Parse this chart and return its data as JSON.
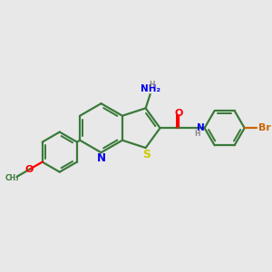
{
  "background_color": "#e8e8e8",
  "bond_color": "#3a7a3a",
  "bond_width": 1.6,
  "atom_colors": {
    "N": "#0000ee",
    "S": "#cccc00",
    "O": "#ff0000",
    "Br": "#cc6600",
    "H": "#888888"
  },
  "figsize": [
    3.0,
    3.0
  ],
  "dpi": 100
}
